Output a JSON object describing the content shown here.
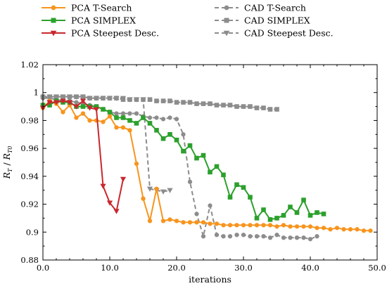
{
  "chart_data": {
    "type": "line",
    "title": "",
    "xlabel": "iterations",
    "ylabel": "R_T / R_T0",
    "xlim": [
      0,
      50
    ],
    "ylim": [
      0.88,
      1.02
    ],
    "xticks": [
      0,
      10,
      20,
      30,
      40,
      50
    ],
    "xtick_labels": [
      "0.0",
      "10.0",
      "20.0",
      "30.0",
      "40.0",
      "50.0"
    ],
    "yticks": [
      0.88,
      0.9,
      0.92,
      0.94,
      0.96,
      0.98,
      1.0,
      1.02
    ],
    "ytick_labels": [
      "0.88",
      "0.9",
      "0.92",
      "0.94",
      "0.96",
      "0.98",
      "1",
      "1.02"
    ],
    "grid": false,
    "legend_position": "top, above plot, two columns",
    "series": [
      {
        "name": "PCA T-Search",
        "color": "#f7941d",
        "dashed": false,
        "marker": "circle",
        "x": [
          0,
          1,
          2,
          3,
          4,
          5,
          6,
          7,
          8,
          9,
          10,
          11,
          12,
          13,
          14,
          15,
          16,
          17,
          18,
          19,
          20,
          21,
          22,
          23,
          24,
          25,
          26,
          27,
          28,
          29,
          30,
          31,
          32,
          33,
          34,
          35,
          36,
          37,
          38,
          39,
          40,
          41,
          42,
          43,
          44,
          45,
          46,
          47,
          48,
          49
        ],
        "y": [
          0.989,
          0.994,
          0.992,
          0.986,
          0.991,
          0.982,
          0.985,
          0.98,
          0.98,
          0.979,
          0.983,
          0.975,
          0.975,
          0.973,
          0.949,
          0.924,
          0.908,
          0.931,
          0.908,
          0.909,
          0.908,
          0.907,
          0.907,
          0.907,
          0.907,
          0.906,
          0.906,
          0.905,
          0.905,
          0.905,
          0.905,
          0.905,
          0.905,
          0.905,
          0.905,
          0.904,
          0.905,
          0.904,
          0.904,
          0.904,
          0.904,
          0.903,
          0.903,
          0.902,
          0.903,
          0.902,
          0.902,
          0.902,
          0.901,
          0.901
        ]
      },
      {
        "name": "PCA SIMPLEX",
        "color": "#2ca02c",
        "dashed": false,
        "marker": "square",
        "x": [
          0,
          1,
          2,
          3,
          4,
          5,
          6,
          7,
          8,
          9,
          10,
          11,
          12,
          13,
          14,
          15,
          16,
          17,
          18,
          19,
          20,
          21,
          22,
          23,
          24,
          25,
          26,
          27,
          28,
          29,
          30,
          31,
          32,
          33,
          34,
          35,
          36,
          37,
          38,
          39,
          40,
          41,
          42
        ],
        "y": [
          0.991,
          0.991,
          0.994,
          0.993,
          0.993,
          0.99,
          0.99,
          0.99,
          0.99,
          0.988,
          0.986,
          0.982,
          0.982,
          0.98,
          0.978,
          0.982,
          0.978,
          0.973,
          0.967,
          0.97,
          0.966,
          0.958,
          0.962,
          0.953,
          0.955,
          0.943,
          0.947,
          0.941,
          0.925,
          0.934,
          0.932,
          0.925,
          0.91,
          0.916,
          0.909,
          0.91,
          0.912,
          0.918,
          0.914,
          0.923,
          0.912,
          0.914,
          0.913
        ]
      },
      {
        "name": "PCA Steepest Desc.",
        "color": "#c8282d",
        "dashed": false,
        "marker": "triangle-down",
        "x": [
          0,
          1,
          2,
          3,
          4,
          5,
          6,
          7,
          8,
          9,
          10,
          11,
          12
        ],
        "y": [
          0.989,
          0.993,
          0.993,
          0.994,
          0.993,
          0.99,
          0.994,
          0.989,
          0.988,
          0.933,
          0.921,
          0.915,
          0.938
        ]
      },
      {
        "name": "CAD T-Search",
        "color": "#8c8c8c",
        "dashed": true,
        "marker": "circle",
        "x": [
          0,
          1,
          2,
          3,
          4,
          5,
          6,
          7,
          8,
          9,
          10,
          11,
          12,
          13,
          14,
          15,
          16,
          17,
          18,
          19,
          20,
          21,
          22,
          23,
          24,
          25,
          26,
          27,
          28,
          29,
          30,
          31,
          32,
          33,
          34,
          35,
          36,
          37,
          38,
          39,
          40,
          41
        ],
        "y": [
          0.996,
          0.996,
          0.995,
          0.994,
          0.994,
          0.993,
          0.992,
          0.991,
          0.99,
          0.988,
          0.986,
          0.985,
          0.985,
          0.985,
          0.985,
          0.983,
          0.982,
          0.982,
          0.981,
          0.982,
          0.981,
          0.97,
          0.936,
          0.913,
          0.897,
          0.919,
          0.898,
          0.897,
          0.897,
          0.898,
          0.898,
          0.897,
          0.897,
          0.897,
          0.896,
          0.898,
          0.896,
          0.896,
          0.896,
          0.896,
          0.895,
          0.897
        ]
      },
      {
        "name": "CAD SIMPLEX",
        "color": "#8c8c8c",
        "dashed": true,
        "marker": "square",
        "x": [
          0,
          1,
          2,
          3,
          4,
          5,
          6,
          7,
          8,
          9,
          10,
          11,
          12,
          13,
          14,
          15,
          16,
          17,
          18,
          19,
          20,
          21,
          22,
          23,
          24,
          25,
          26,
          27,
          28,
          29,
          30,
          31,
          32,
          33,
          34,
          35
        ],
        "y": [
          0.997,
          0.997,
          0.997,
          0.997,
          0.997,
          0.997,
          0.997,
          0.996,
          0.996,
          0.996,
          0.996,
          0.996,
          0.995,
          0.995,
          0.995,
          0.995,
          0.995,
          0.994,
          0.994,
          0.994,
          0.993,
          0.993,
          0.993,
          0.992,
          0.992,
          0.992,
          0.991,
          0.991,
          0.991,
          0.99,
          0.99,
          0.99,
          0.989,
          0.989,
          0.988,
          0.988
        ]
      },
      {
        "name": "CAD Steepest Desc.",
        "color": "#8c8c8c",
        "dashed": true,
        "marker": "triangle-down",
        "x": [
          0,
          1,
          2,
          3,
          4,
          5,
          6,
          7,
          8,
          9,
          10,
          11,
          12,
          13,
          14,
          15,
          16,
          17,
          18,
          19
        ],
        "y": [
          0.996,
          0.997,
          0.997,
          0.997,
          0.997,
          0.997,
          0.997,
          0.996,
          0.996,
          0.996,
          0.996,
          0.996,
          0.996,
          0.995,
          0.995,
          0.995,
          0.931,
          0.93,
          0.929,
          0.93
        ]
      }
    ]
  }
}
